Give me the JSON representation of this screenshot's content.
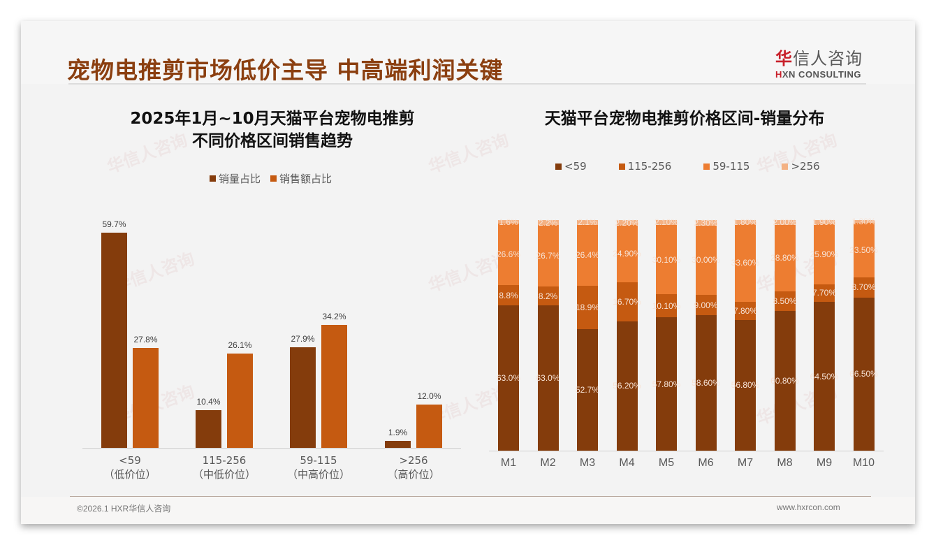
{
  "header": {
    "title": "宠物电推剪市场低价主导 中高端利润关键",
    "logo_cn_first": "华",
    "logo_cn_rest": "信人咨询",
    "logo_en_first": "H",
    "logo_en_rest": "XN CONSULTING"
  },
  "left_chart": {
    "title_line1": "2025年1月~10月天猫平台宠物电推剪",
    "title_line2": "不同价格区间销售趋势",
    "legend": [
      {
        "label": "销量占比",
        "color": "#843c0c"
      },
      {
        "label": "销售额占比",
        "color": "#c55a11"
      }
    ]
  },
  "right_chart": {
    "title": "天猫平台宠物电推剪价格区间-销量分布",
    "legend": [
      {
        "label": "<59",
        "color": "#843c0c"
      },
      {
        "label": "115-256",
        "color": "#c55a11"
      },
      {
        "label": "59-115",
        "color": "#ed7d31"
      },
      {
        "label": ">256",
        "color": "#f4b183"
      }
    ]
  },
  "chart_data": [
    {
      "type": "bar",
      "title": "2025年1月~10月天猫平台宠物电推剪不同价格区间销售趋势",
      "categories": [
        "<59（低价位）",
        "115-256（中低价位）",
        "59-115（中高价位）",
        ">256（高价位）"
      ],
      "category_line1": [
        "<59",
        "115-256",
        "59-115",
        ">256"
      ],
      "category_line2": [
        "（低价位）",
        "（中低价位）",
        "（中高价位）",
        "（高价位）"
      ],
      "series": [
        {
          "name": "销量占比",
          "values": [
            59.7,
            10.4,
            27.9,
            1.9
          ],
          "labels": [
            "59.7%",
            "10.4%",
            "27.9%",
            "1.9%"
          ],
          "color": "#843c0c"
        },
        {
          "name": "销售额占比",
          "values": [
            27.8,
            26.1,
            34.2,
            12.0
          ],
          "labels": [
            "27.8%",
            "26.1%",
            "34.2%",
            "12.0%"
          ],
          "color": "#c55a11"
        }
      ],
      "xlabel": "",
      "ylabel": "",
      "grid": false,
      "legend_position": "top"
    },
    {
      "type": "bar",
      "stacked": true,
      "title": "天猫平台宠物电推剪价格区间-销量分布",
      "categories": [
        "M1",
        "M2",
        "M3",
        "M4",
        "M5",
        "M6",
        "M7",
        "M8",
        "M9",
        "M10"
      ],
      "series": [
        {
          "name": "<59",
          "values": [
            63.0,
            63.0,
            52.7,
            56.2,
            57.8,
            58.6,
            56.8,
            60.8,
            64.5,
            66.5
          ],
          "labels": [
            "63.0%",
            "63.0%",
            "52.7%",
            "56.20%",
            "57.80%",
            "58.60%",
            "56.80%",
            "60.80%",
            "64.50%",
            "66.50%"
          ],
          "color": "#843c0c"
        },
        {
          "name": "115-256",
          "values": [
            8.8,
            8.2,
            18.9,
            16.7,
            10.1,
            9.0,
            7.8,
            8.5,
            7.7,
            8.7
          ],
          "labels": [
            "8.8%",
            "8.2%",
            "18.9%",
            "16.70%",
            "10.10%",
            "9.00%",
            "7.80%",
            "8.50%",
            "7.70%",
            "8.70%"
          ],
          "color": "#c55a11"
        },
        {
          "name": "59-115",
          "values": [
            26.6,
            26.7,
            26.4,
            24.9,
            30.1,
            30.0,
            33.6,
            28.8,
            25.9,
            23.5
          ],
          "labels": [
            "26.6%",
            "26.7%",
            "26.4%",
            "24.90%",
            "30.10%",
            "30.00%",
            "33.60%",
            "28.80%",
            "25.90%",
            "23.50%"
          ],
          "color": "#ed7d31"
        },
        {
          "name": ">256",
          "values": [
            1.6,
            2.2,
            2.1,
            2.2,
            2.1,
            2.3,
            1.8,
            2.0,
            1.9,
            1.3
          ],
          "labels": [
            "1.6%",
            "2.2%",
            "2.1%",
            "2.20%",
            "2.10%",
            "2.30%",
            "1.80%",
            "2.00%",
            "1.90%",
            "1.30%"
          ],
          "color": "#f4b183"
        }
      ],
      "ylim": [
        0,
        100
      ],
      "grid": false,
      "legend_position": "top"
    }
  ],
  "footer": {
    "copyright": "©2026.1 HXR华信人咨询",
    "website": "www.hxrcon.com"
  },
  "watermark": {
    "cn": "华信人咨询",
    "en": "HXN CONSULTING"
  }
}
